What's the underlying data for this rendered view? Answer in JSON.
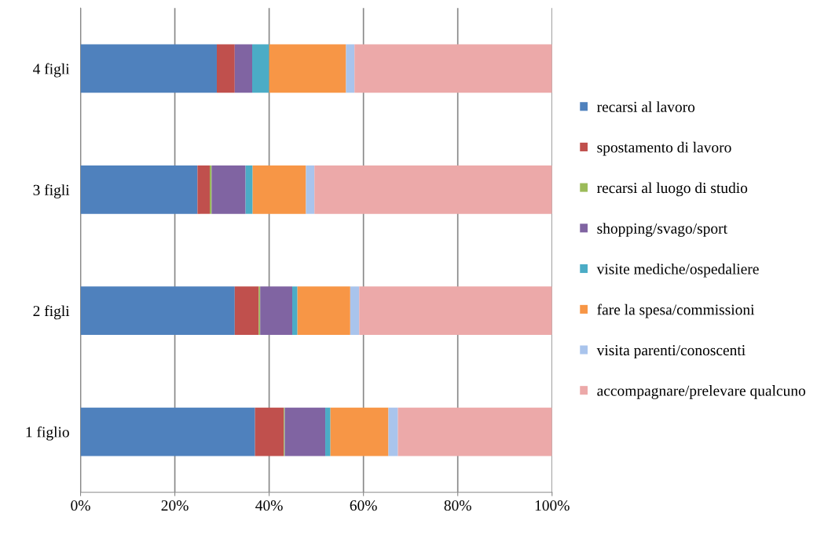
{
  "chart_data": {
    "type": "bar",
    "orientation": "horizontal",
    "stacked": true,
    "categories": [
      "4 figli",
      "3 figli",
      "2 figli",
      "1 figlio"
    ],
    "series": [
      {
        "name": "recarsi al lavoro",
        "color": "#4f81bd",
        "values": [
          28.9,
          24.8,
          32.7,
          37.0
        ]
      },
      {
        "name": "spostamento di lavoro",
        "color": "#c0504d",
        "values": [
          3.8,
          2.6,
          5.1,
          6.1
        ]
      },
      {
        "name": "recarsi al luogo di studio",
        "color": "#9bbb59",
        "values": [
          0,
          0.4,
          0.3,
          0.2
        ]
      },
      {
        "name": "shopping/svago/sport",
        "color": "#8064a2",
        "values": [
          3.7,
          7.2,
          6.8,
          8.6
        ]
      },
      {
        "name": "visite mediche/ospedaliere",
        "color": "#4bacc6",
        "values": [
          3.6,
          1.5,
          1.1,
          1.1
        ]
      },
      {
        "name": "fare la spesa/commissioni",
        "color": "#f79646",
        "values": [
          16.3,
          11.3,
          11.2,
          12.3
        ]
      },
      {
        "name": "visita parenti/conoscenti",
        "color": "#a9c4ec",
        "values": [
          1.8,
          1.8,
          1.9,
          2.0
        ]
      },
      {
        "name": "accompagnare/prelevare qualcuno",
        "color": "#eca9a9",
        "values": [
          41.9,
          50.4,
          40.9,
          32.7
        ]
      }
    ],
    "xlim": [
      0,
      100
    ],
    "xticks": [
      {
        "value": 0,
        "label": "0%"
      },
      {
        "value": 20,
        "label": "20%"
      },
      {
        "value": 40,
        "label": "40%"
      },
      {
        "value": 60,
        "label": "60%"
      },
      {
        "value": 80,
        "label": "80%"
      },
      {
        "value": 100,
        "label": "100%"
      }
    ],
    "grid": "x",
    "legend": "right"
  }
}
